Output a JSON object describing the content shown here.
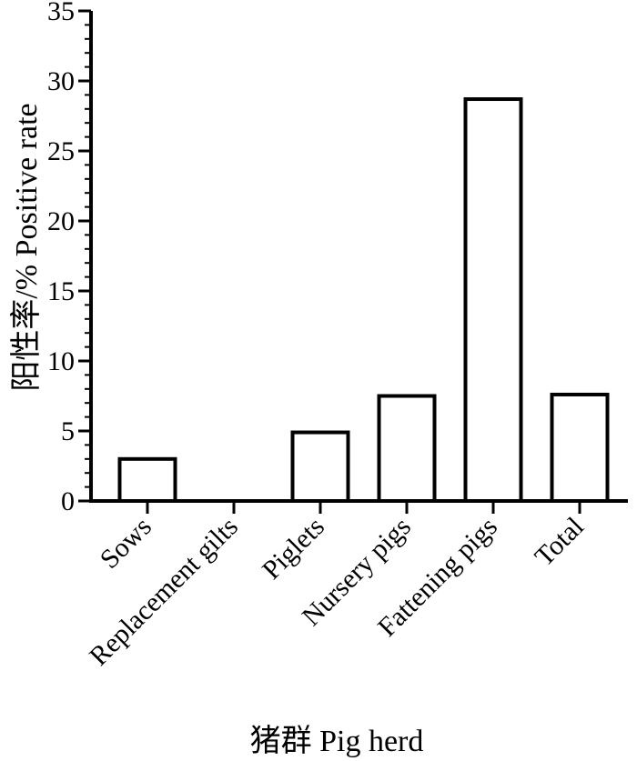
{
  "chart_data": {
    "type": "bar",
    "categories": [
      "Sows",
      "Replacement gilts",
      "Piglets",
      "Nursery pigs",
      "Fattening pigs",
      "Total"
    ],
    "values": [
      3.0,
      0,
      4.9,
      7.5,
      28.7,
      7.6
    ],
    "xlabel": "猪群  Pig herd",
    "ylabel": "阳性率/%  Positive rate",
    "ylim": [
      0,
      35
    ],
    "yticks": [
      0,
      5,
      10,
      15,
      20,
      25,
      30,
      35
    ],
    "grid": false,
    "legend": "none",
    "colors": {
      "bar_fill": "#ffffff",
      "bar_stroke": "#000000",
      "axis": "#000000"
    }
  }
}
